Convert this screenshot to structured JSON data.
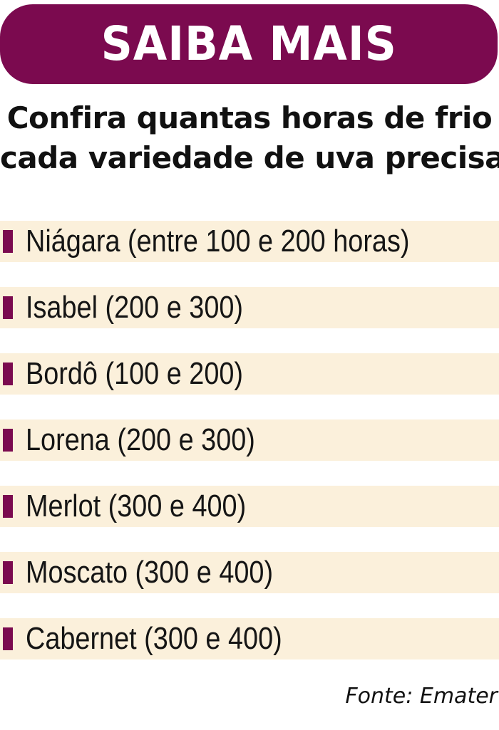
{
  "banner": {
    "title": "SAIBA MAIS"
  },
  "intro": {
    "line1": "Confira quantas horas de frio",
    "line2": "cada variedade de uva precisa:"
  },
  "list": {
    "items": [
      {
        "label": "Niágara (entre 100 e 200 horas)"
      },
      {
        "label": "Isabel (200 e 300)"
      },
      {
        "label": "Bordô (100 e 200)"
      },
      {
        "label": "Lorena (200 e 300)"
      },
      {
        "label": "Merlot (300 e 400)"
      },
      {
        "label": "Moscato (300 e 400)"
      },
      {
        "label": "Cabernet (300 e 400)"
      }
    ]
  },
  "source": {
    "text": "Fonte: Emater"
  },
  "colors": {
    "accent": "#7b0a4f",
    "row_background": "#fbf0db",
    "text": "#111111"
  }
}
